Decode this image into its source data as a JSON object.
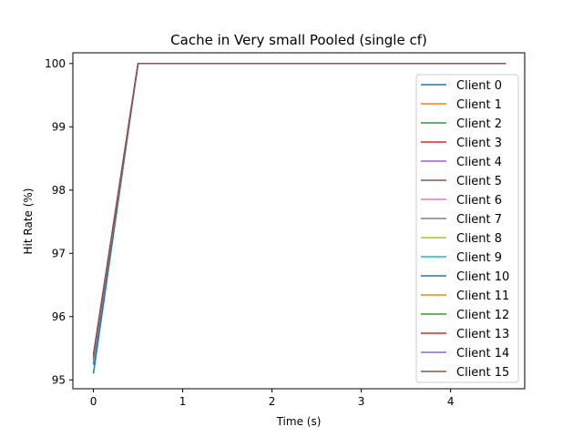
{
  "chart_data": {
    "type": "line",
    "title": "Cache in Very small Pooled (single cf)",
    "xlabel": "Time (s)",
    "ylabel": "Hit Rate (%)",
    "xlim": [
      -0.23,
      4.83
    ],
    "ylim": [
      94.86,
      100.17
    ],
    "xticks": [
      0,
      1,
      2,
      3,
      4
    ],
    "yticks": [
      95,
      96,
      97,
      98,
      99,
      100
    ],
    "grid": false,
    "legend_position": "right",
    "series": [
      {
        "name": "Client 0",
        "color": "#1f77b4",
        "x": [
          0,
          0.5,
          4.62
        ],
        "y": [
          95.24,
          100,
          100
        ]
      },
      {
        "name": "Client 1",
        "color": "#ff7f0e",
        "x": [
          0,
          0.5,
          4.62
        ],
        "y": [
          95.35,
          100,
          100
        ]
      },
      {
        "name": "Client 2",
        "color": "#2ca02c",
        "x": [
          0,
          0.5,
          4.62
        ],
        "y": [
          95.3,
          100,
          100
        ]
      },
      {
        "name": "Client 3",
        "color": "#d62728",
        "x": [
          0,
          0.5,
          4.62
        ],
        "y": [
          95.38,
          100,
          100
        ]
      },
      {
        "name": "Client 4",
        "color": "#9467bd",
        "x": [
          0,
          0.5,
          4.62
        ],
        "y": [
          95.32,
          100,
          100
        ]
      },
      {
        "name": "Client 5",
        "color": "#8c564b",
        "x": [
          0,
          0.5,
          4.62
        ],
        "y": [
          95.4,
          100,
          100
        ]
      },
      {
        "name": "Client 6",
        "color": "#e377c2",
        "x": [
          0,
          0.5,
          4.62
        ],
        "y": [
          95.28,
          100,
          100
        ]
      },
      {
        "name": "Client 7",
        "color": "#7f7f7f",
        "x": [
          0,
          0.5,
          4.62
        ],
        "y": [
          95.33,
          100,
          100
        ]
      },
      {
        "name": "Client 8",
        "color": "#bcbd22",
        "x": [
          0,
          0.5,
          4.62
        ],
        "y": [
          95.36,
          100,
          100
        ]
      },
      {
        "name": "Client 9",
        "color": "#17becf",
        "x": [
          0,
          0.5,
          4.62
        ],
        "y": [
          95.27,
          100,
          100
        ]
      },
      {
        "name": "Client 10",
        "color": "#1f77b4",
        "x": [
          0,
          0.5,
          4.62
        ],
        "y": [
          95.1,
          100,
          100
        ]
      },
      {
        "name": "Client 11",
        "color": "#ff7f0e",
        "x": [
          0,
          0.5,
          4.62
        ],
        "y": [
          95.31,
          100,
          100
        ]
      },
      {
        "name": "Client 12",
        "color": "#2ca02c",
        "x": [
          0,
          0.5,
          4.62
        ],
        "y": [
          95.34,
          100,
          100
        ]
      },
      {
        "name": "Client 13",
        "color": "#d62728",
        "x": [
          0,
          0.5,
          4.62
        ],
        "y": [
          95.37,
          100,
          100
        ]
      },
      {
        "name": "Client 14",
        "color": "#9467bd",
        "x": [
          0,
          0.5,
          4.62
        ],
        "y": [
          95.33,
          100,
          100
        ]
      },
      {
        "name": "Client 15",
        "color": "#8c564b",
        "x": [
          0,
          0.5,
          4.62
        ],
        "y": [
          95.39,
          100,
          100
        ]
      }
    ]
  }
}
